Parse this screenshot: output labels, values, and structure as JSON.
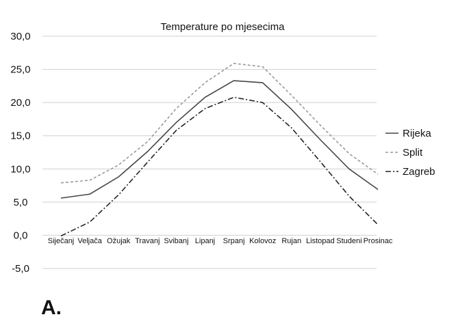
{
  "caption": "A.",
  "chart_data": {
    "type": "line",
    "title": "Temperature po mjesecima",
    "xlabel": "",
    "ylabel": "",
    "ylim": [
      -5,
      30
    ],
    "yticks": [
      "-5,0",
      "0,0",
      "5,0",
      "10,0",
      "15,0",
      "20,0",
      "25,0",
      "30,0"
    ],
    "grid": true,
    "legend_position": "right",
    "categories": [
      "Siječanj",
      "Veljača",
      "Ožujak",
      "Travanj",
      "Svibanj",
      "Lipanj",
      "Srpanj",
      "Kolovoz",
      "Rujan",
      "Listopad",
      "Studeni",
      "Prosinac"
    ],
    "series": [
      {
        "name": "Rijeka",
        "color": "#444444",
        "dash": "solid",
        "values": [
          5.6,
          6.2,
          8.8,
          12.6,
          17.0,
          20.8,
          23.3,
          23.0,
          19.0,
          14.4,
          10.0,
          6.9
        ]
      },
      {
        "name": "Split",
        "color": "#999999",
        "dash": "dashed",
        "values": [
          7.9,
          8.3,
          10.6,
          14.1,
          19.1,
          23.0,
          25.9,
          25.4,
          21.1,
          16.6,
          12.3,
          9.2
        ]
      },
      {
        "name": "Zagreb",
        "color": "#222222",
        "dash": "dashdot",
        "values": [
          -0.1,
          2.0,
          6.1,
          11.0,
          15.8,
          19.1,
          20.8,
          20.0,
          16.2,
          11.1,
          5.9,
          1.6
        ]
      }
    ]
  }
}
